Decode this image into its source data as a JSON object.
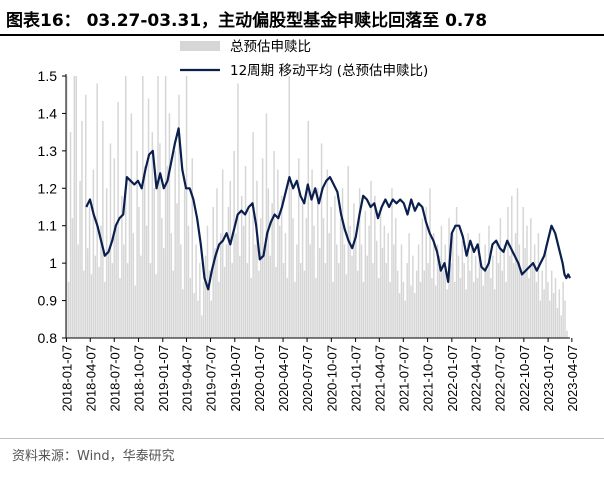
{
  "title": "图表16：  03.27-03.31，主动偏股型基金申赎比回落至 0.78",
  "source": "资料来源：Wind，华泰研究",
  "colors": {
    "bar": "#d6d6d6",
    "line": "#0b1f4e",
    "axis": "#000000"
  },
  "chart_data": {
    "type": "bar+line",
    "legend": [
      {
        "name": "总预估申赎比",
        "kind": "bar"
      },
      {
        "name": "12周期 移动平均 (总预估申赎比)",
        "kind": "line"
      }
    ],
    "legend_position": "top-left",
    "ylim": [
      0.8,
      1.5
    ],
    "yticks": [
      "0.8",
      "0.9",
      "1",
      "1.1",
      "1.2",
      "1.3",
      "1.4",
      "1.5"
    ],
    "xticks": [
      "2018-01-07",
      "2018-04-07",
      "2018-07-07",
      "2018-10-07",
      "2019-01-07",
      "2019-04-07",
      "2019-07-07",
      "2019-10-07",
      "2020-01-07",
      "2020-04-07",
      "2020-07-07",
      "2020-10-07",
      "2021-01-07",
      "2021-04-07",
      "2021-07-07",
      "2021-10-07",
      "2022-01-07",
      "2022-04-07",
      "2022-07-07",
      "2022-10-07",
      "2023-01-07",
      "2023-04-07"
    ],
    "x_range": [
      "2018-01-05",
      "2023-03-31"
    ],
    "bars_ratio": [
      1.5,
      0.95,
      1.35,
      1.12,
      1.5,
      1.5,
      1.05,
      1.22,
      1.38,
      0.98,
      1.45,
      1.04,
      1.15,
      0.97,
      1.25,
      1.02,
      1.48,
      0.99,
      1.1,
      1.38,
      0.95,
      1.2,
      1.03,
      1.32,
      1.0,
      1.28,
      1.1,
      1.43,
      0.96,
      1.18,
      1.05,
      1.5,
      1.0,
      1.22,
      1.4,
      1.08,
      0.94,
      1.3,
      1.15,
      1.02,
      1.5,
      1.26,
      1.1,
      1.44,
      1.0,
      1.35,
      1.2,
      0.97,
      1.5,
      1.32,
      1.12,
      1.04,
      1.5,
      1.26,
      1.4,
      1.08,
      0.98,
      1.3,
      1.16,
      1.45,
      1.05,
      0.93,
      1.2,
      1.5,
      1.1,
      0.96,
      1.28,
      0.92,
      1.05,
      0.9,
      1.0,
      0.86,
      0.95,
      1.02,
      1.1,
      0.98,
      0.9,
      1.15,
      1.04,
      1.2,
      0.95,
      1.08,
      1.25,
      0.99,
      1.05,
      1.15,
      1.22,
      1.0,
      1.3,
      1.08,
      1.48,
      1.02,
      1.18,
      1.1,
      1.26,
      1.0,
      1.14,
      0.96,
      1.35,
      1.05,
      1.22,
      0.98,
      1.12,
      1.28,
      1.05,
      1.4,
      1.2,
      1.02,
      1.16,
      1.3,
      0.99,
      1.25,
      1.1,
      1.18,
      1.0,
      1.08,
      0.96,
      1.5,
      1.2,
      1.12,
      0.95,
      1.05,
      1.28,
      1.0,
      1.16,
      0.98,
      1.12,
      1.38,
      1.05,
      1.25,
      1.1,
      0.96,
      1.2,
      1.04,
      1.32,
      1.12,
      1.0,
      1.25,
      1.08,
      1.15,
      0.95,
      1.18,
      1.05,
      1.0,
      1.12,
      1.2,
      1.05,
      0.97,
      1.26,
      1.1,
      1.02,
      1.16,
      1.08,
      0.98,
      1.2,
      1.05,
      0.95,
      1.14,
      1.02,
      1.1,
      1.22,
      1.0,
      1.18,
      1.06,
      0.96,
      1.15,
      1.04,
      1.1,
      1.0,
      1.08,
      0.95,
      1.2,
      1.05,
      1.12,
      0.98,
      0.92,
      1.05,
      0.95,
      0.9,
      1.0,
      1.08,
      0.94,
      1.02,
      0.92,
      0.98,
      1.05,
      0.95,
      1.12,
      0.98,
      1.15,
      1.0,
      1.2,
      0.96,
      1.08,
      0.94,
      1.05,
      1.02,
      1.1,
      0.98,
      1.05,
      0.93,
      1.12,
      1.0,
      1.08,
      0.95,
      1.15,
      1.02,
      0.96,
      1.06,
      1.0,
      0.93,
      1.08,
      0.98,
      1.05,
      0.95,
      1.02,
      0.96,
      1.08,
      1.0,
      0.94,
      1.05,
      0.98,
      1.1,
      0.96,
      1.02,
      0.93,
      1.06,
      1.0,
      1.12,
      0.98,
      1.05,
      0.95,
      1.15,
      1.02,
      1.18,
      1.0,
      1.08,
      1.2,
      1.05,
      0.98,
      1.15,
      1.04,
      1.1,
      0.96,
      1.12,
      1.0,
      1.05,
      0.95,
      1.08,
      0.9,
      0.98,
      0.93,
      1.05,
      0.95,
      0.9,
      0.98,
      0.92,
      0.96,
      0.88,
      0.93,
      0.86,
      0.95,
      0.9,
      0.82,
      0.78
    ],
    "ma12": [
      [
        "2018-03-23",
        1.15
      ],
      [
        "2018-04-06",
        1.17
      ],
      [
        "2018-04-20",
        1.13
      ],
      [
        "2018-05-04",
        1.1
      ],
      [
        "2018-05-18",
        1.06
      ],
      [
        "2018-06-01",
        1.02
      ],
      [
        "2018-06-15",
        1.03
      ],
      [
        "2018-06-29",
        1.06
      ],
      [
        "2018-07-13",
        1.1
      ],
      [
        "2018-07-27",
        1.12
      ],
      [
        "2018-08-10",
        1.13
      ],
      [
        "2018-08-24",
        1.23
      ],
      [
        "2018-09-07",
        1.22
      ],
      [
        "2018-09-21",
        1.21
      ],
      [
        "2018-10-05",
        1.22
      ],
      [
        "2018-10-19",
        1.2
      ],
      [
        "2018-11-02",
        1.25
      ],
      [
        "2018-11-16",
        1.29
      ],
      [
        "2018-11-30",
        1.3
      ],
      [
        "2018-12-14",
        1.2
      ],
      [
        "2018-12-28",
        1.24
      ],
      [
        "2019-01-11",
        1.2
      ],
      [
        "2019-01-25",
        1.22
      ],
      [
        "2019-02-08",
        1.27
      ],
      [
        "2019-02-22",
        1.32
      ],
      [
        "2019-03-08",
        1.36
      ],
      [
        "2019-03-22",
        1.25
      ],
      [
        "2019-04-05",
        1.2
      ],
      [
        "2019-04-19",
        1.2
      ],
      [
        "2019-05-03",
        1.17
      ],
      [
        "2019-05-17",
        1.12
      ],
      [
        "2019-05-31",
        1.05
      ],
      [
        "2019-06-14",
        0.96
      ],
      [
        "2019-06-28",
        0.93
      ],
      [
        "2019-07-12",
        0.98
      ],
      [
        "2019-07-26",
        1.02
      ],
      [
        "2019-08-09",
        1.05
      ],
      [
        "2019-08-23",
        1.06
      ],
      [
        "2019-09-06",
        1.08
      ],
      [
        "2019-09-20",
        1.05
      ],
      [
        "2019-10-04",
        1.09
      ],
      [
        "2019-10-18",
        1.13
      ],
      [
        "2019-11-01",
        1.14
      ],
      [
        "2019-11-15",
        1.13
      ],
      [
        "2019-11-29",
        1.15
      ],
      [
        "2019-12-13",
        1.16
      ],
      [
        "2019-12-27",
        1.1
      ],
      [
        "2020-01-10",
        1.01
      ],
      [
        "2020-01-24",
        1.02
      ],
      [
        "2020-02-07",
        1.08
      ],
      [
        "2020-02-21",
        1.11
      ],
      [
        "2020-03-06",
        1.13
      ],
      [
        "2020-03-20",
        1.12
      ],
      [
        "2020-04-03",
        1.15
      ],
      [
        "2020-04-17",
        1.19
      ],
      [
        "2020-05-01",
        1.23
      ],
      [
        "2020-05-15",
        1.2
      ],
      [
        "2020-05-29",
        1.22
      ],
      [
        "2020-06-12",
        1.18
      ],
      [
        "2020-06-26",
        1.16
      ],
      [
        "2020-07-10",
        1.21
      ],
      [
        "2020-07-24",
        1.17
      ],
      [
        "2020-08-07",
        1.2
      ],
      [
        "2020-08-21",
        1.16
      ],
      [
        "2020-09-04",
        1.2
      ],
      [
        "2020-09-18",
        1.22
      ],
      [
        "2020-10-02",
        1.23
      ],
      [
        "2020-10-16",
        1.21
      ],
      [
        "2020-10-30",
        1.19
      ],
      [
        "2020-11-13",
        1.13
      ],
      [
        "2020-11-27",
        1.09
      ],
      [
        "2020-12-11",
        1.06
      ],
      [
        "2020-12-25",
        1.04
      ],
      [
        "2021-01-08",
        1.07
      ],
      [
        "2021-01-22",
        1.13
      ],
      [
        "2021-02-05",
        1.18
      ],
      [
        "2021-02-19",
        1.17
      ],
      [
        "2021-03-05",
        1.15
      ],
      [
        "2021-03-19",
        1.16
      ],
      [
        "2021-04-02",
        1.12
      ],
      [
        "2021-04-16",
        1.15
      ],
      [
        "2021-04-30",
        1.17
      ],
      [
        "2021-05-14",
        1.15
      ],
      [
        "2021-05-28",
        1.17
      ],
      [
        "2021-06-11",
        1.16
      ],
      [
        "2021-06-25",
        1.17
      ],
      [
        "2021-07-09",
        1.16
      ],
      [
        "2021-07-23",
        1.13
      ],
      [
        "2021-08-06",
        1.17
      ],
      [
        "2021-08-20",
        1.14
      ],
      [
        "2021-09-03",
        1.16
      ],
      [
        "2021-09-17",
        1.15
      ],
      [
        "2021-10-01",
        1.11
      ],
      [
        "2021-10-15",
        1.08
      ],
      [
        "2021-10-29",
        1.06
      ],
      [
        "2021-11-12",
        1.03
      ],
      [
        "2021-11-26",
        0.98
      ],
      [
        "2021-12-10",
        1.0
      ],
      [
        "2021-12-24",
        0.95
      ],
      [
        "2022-01-07",
        1.08
      ],
      [
        "2022-01-21",
        1.1
      ],
      [
        "2022-02-04",
        1.1
      ],
      [
        "2022-02-18",
        1.07
      ],
      [
        "2022-03-04",
        1.02
      ],
      [
        "2022-03-18",
        1.06
      ],
      [
        "2022-04-01",
        1.03
      ],
      [
        "2022-04-15",
        1.05
      ],
      [
        "2022-04-29",
        0.99
      ],
      [
        "2022-05-13",
        0.98
      ],
      [
        "2022-05-27",
        1.0
      ],
      [
        "2022-06-10",
        1.05
      ],
      [
        "2022-06-24",
        1.06
      ],
      [
        "2022-07-08",
        1.04
      ],
      [
        "2022-07-22",
        1.03
      ],
      [
        "2022-08-05",
        1.06
      ],
      [
        "2022-08-19",
        1.04
      ],
      [
        "2022-09-02",
        1.02
      ],
      [
        "2022-09-16",
        1.0
      ],
      [
        "2022-09-30",
        0.97
      ],
      [
        "2022-10-14",
        0.98
      ],
      [
        "2022-10-28",
        0.99
      ],
      [
        "2022-11-11",
        1.0
      ],
      [
        "2022-11-25",
        0.98
      ],
      [
        "2022-12-09",
        1.0
      ],
      [
        "2022-12-23",
        1.02
      ],
      [
        "2023-01-06",
        1.06
      ],
      [
        "2023-01-20",
        1.1
      ],
      [
        "2023-02-03",
        1.08
      ],
      [
        "2023-02-17",
        1.04
      ],
      [
        "2023-03-03",
        1.0
      ],
      [
        "2023-03-10",
        0.97
      ],
      [
        "2023-03-17",
        0.96
      ],
      [
        "2023-03-24",
        0.97
      ],
      [
        "2023-03-31",
        0.96
      ]
    ],
    "grid": false
  }
}
